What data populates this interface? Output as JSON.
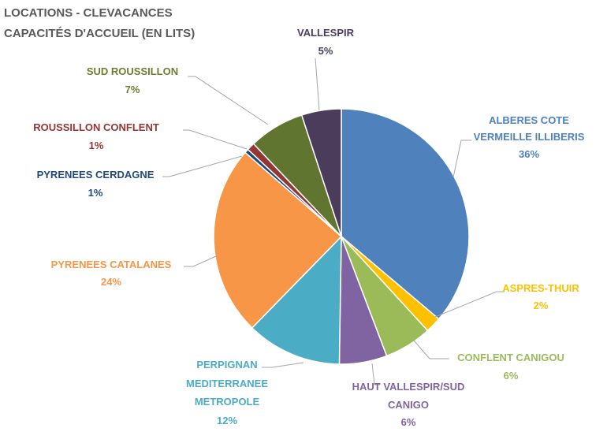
{
  "chart_data": {
    "type": "pie",
    "title_lines": [
      "LOCATIONS - CLEVACANCES",
      "CAPACITÉS D'ACCUEIL (EN LITS)"
    ],
    "slices": [
      {
        "label_lines": [
          "ALBERES COTE",
          "VERMEILLE ILLIBERIS"
        ],
        "value": 36,
        "pct_text": "36%",
        "color": "#4f81bd"
      },
      {
        "label_lines": [
          "ASPRES-THUIR"
        ],
        "value": 2,
        "pct_text": "2%",
        "color": "#ffc000"
      },
      {
        "label_lines": [
          "CONFLENT CANIGOU"
        ],
        "value": 6,
        "pct_text": "6%",
        "color": "#9bbb59"
      },
      {
        "label_lines": [
          "HAUT VALLESPIR/SUD",
          "CANIGO"
        ],
        "value": 6,
        "pct_text": "6%",
        "color": "#8064a2"
      },
      {
        "label_lines": [
          "PERPIGNAN",
          "MEDITERRANEE",
          "METROPOLE"
        ],
        "value": 12,
        "pct_text": "12%",
        "color": "#4bacc6"
      },
      {
        "label_lines": [
          "PYRENEES CATALANES"
        ],
        "value": 24,
        "pct_text": "24%",
        "color": "#f79646"
      },
      {
        "label_lines": [
          "PYRENEES CERDAGNE"
        ],
        "value": 0.5,
        "pct_text": "1%",
        "color": "#1f497d"
      },
      {
        "label_lines": [
          "ROUSSILLON CONFLENT"
        ],
        "value": 1,
        "pct_text": "1%",
        "color": "#943634"
      },
      {
        "label_lines": [
          "SUD ROUSSILLON"
        ],
        "value": 7,
        "pct_text": "7%",
        "color": "#5f7530"
      },
      {
        "label_lines": [
          "VALLESPIR"
        ],
        "value": 5,
        "pct_text": "5%",
        "color": "#4c3c5c"
      }
    ],
    "start_angle_deg": 0,
    "direction": "clockwise",
    "legend": "none",
    "data_labels": "outside with leader lines"
  }
}
